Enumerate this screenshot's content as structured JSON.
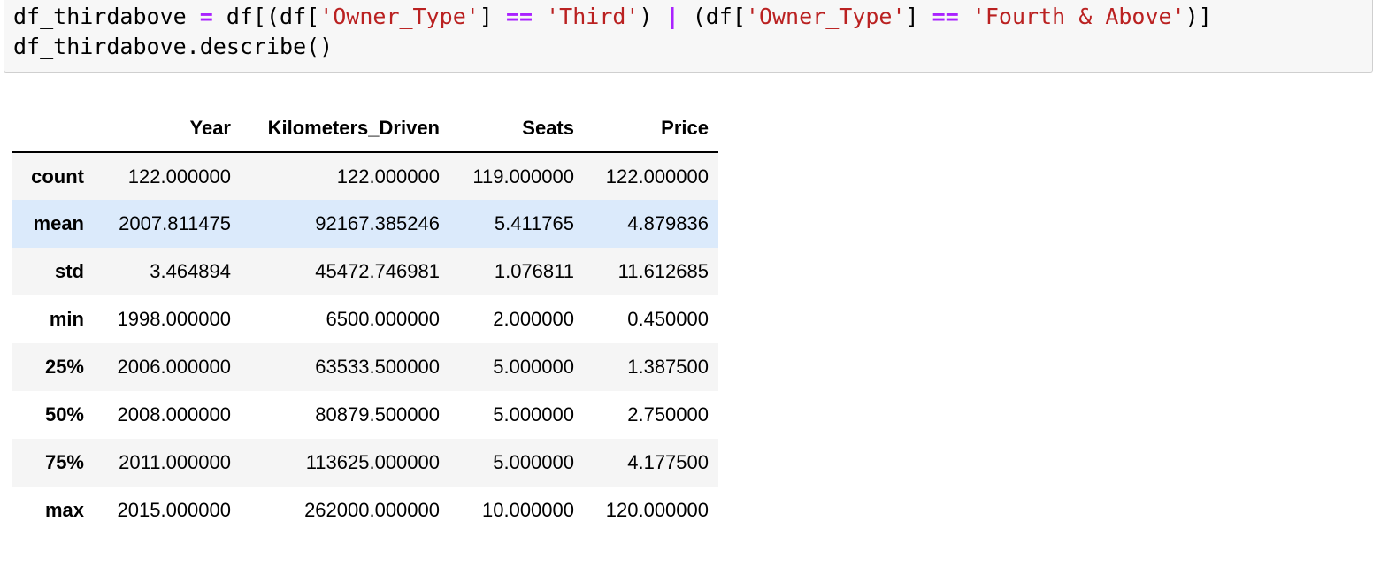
{
  "code_cell": {
    "line1": {
      "var": "df_thirdabove ",
      "assign": "=",
      "p1": " df[(df[",
      "s1": "'Owner_Type'",
      "p2": "] ",
      "eq1": "==",
      "p3": " ",
      "s2": "'Third'",
      "p4": ") ",
      "pipe": "|",
      "p5": " (df[",
      "s3": "'Owner_Type'",
      "p6": "] ",
      "eq2": "==",
      "p7": " ",
      "s4": "'Fourth & Above'",
      "p8": ")]"
    },
    "line2": "df_thirdabove.describe()"
  },
  "table": {
    "columns": [
      "",
      "Year",
      "Kilometers_Driven",
      "Seats",
      "Price"
    ],
    "rows": [
      {
        "index": "count",
        "cells": [
          "122.000000",
          "122.000000",
          "119.000000",
          "122.000000"
        ]
      },
      {
        "index": "mean",
        "cells": [
          "2007.811475",
          "92167.385246",
          "5.411765",
          "4.879836"
        ]
      },
      {
        "index": "std",
        "cells": [
          "3.464894",
          "45472.746981",
          "1.076811",
          "11.612685"
        ]
      },
      {
        "index": "min",
        "cells": [
          "1998.000000",
          "6500.000000",
          "2.000000",
          "0.450000"
        ]
      },
      {
        "index": "25%",
        "cells": [
          "2006.000000",
          "63533.500000",
          "5.000000",
          "1.387500"
        ]
      },
      {
        "index": "50%",
        "cells": [
          "2008.000000",
          "80879.500000",
          "5.000000",
          "2.750000"
        ]
      },
      {
        "index": "75%",
        "cells": [
          "2011.000000",
          "113625.000000",
          "5.000000",
          "4.177500"
        ]
      },
      {
        "index": "max",
        "cells": [
          "2015.000000",
          "262000.000000",
          "10.000000",
          "120.000000"
        ]
      }
    ],
    "hovered_row": 1
  },
  "colors": {
    "code_background": "#f7f7f7",
    "string": "#ba2121",
    "operator": "#aa22ff",
    "row_striped": "#f5f5f5",
    "row_hover": "#dbeafb"
  }
}
